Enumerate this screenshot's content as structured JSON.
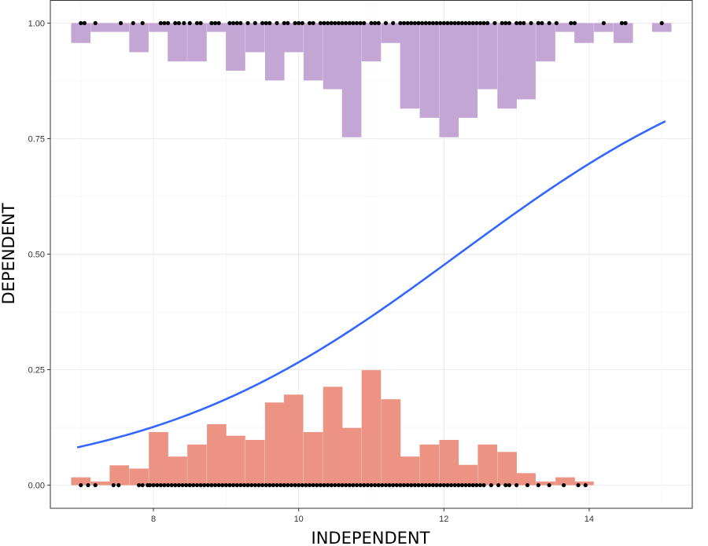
{
  "chart_data": {
    "type": "scatter",
    "title": "",
    "xlabel": "INDEPENDENT",
    "ylabel": "DEPENDENT",
    "xlim": [
      6.58,
      15.42
    ],
    "ylim": [
      -0.05,
      1.05
    ],
    "x_ticks": [
      8,
      10,
      12,
      14
    ],
    "x_tick_labels": [
      "8",
      "10",
      "12",
      "14"
    ],
    "y_ticks": [
      0,
      0.25,
      0.5,
      0.75,
      1
    ],
    "y_tick_labels": [
      "0.00",
      "0.25",
      "0.50",
      "0.75",
      "1.00"
    ],
    "grid": true,
    "legend": "none",
    "colors": {
      "curve": "#3366ff",
      "hist_y0": "#ec9384",
      "hist_y1": "#c4a6d4",
      "points": "#000000",
      "grid": "#ebebeb",
      "panel_border": "#333333"
    },
    "histogram_bin_width": 0.267,
    "hist_y0": {
      "baseline": 0,
      "bin_centers": [
        7.0,
        7.27,
        7.53,
        7.8,
        8.07,
        8.33,
        8.6,
        8.87,
        9.13,
        9.4,
        9.67,
        9.93,
        10.2,
        10.47,
        10.73,
        11.0,
        11.27,
        11.53,
        11.8,
        12.07,
        12.33,
        12.6,
        12.87,
        13.13,
        13.4,
        13.67,
        13.93
      ],
      "heights": [
        0.017,
        0.008,
        0.043,
        0.036,
        0.115,
        0.062,
        0.088,
        0.132,
        0.107,
        0.098,
        0.179,
        0.196,
        0.115,
        0.213,
        0.124,
        0.249,
        0.186,
        0.062,
        0.088,
        0.098,
        0.044,
        0.088,
        0.072,
        0.026,
        0.008,
        0.017,
        0.008
      ]
    },
    "hist_y1": {
      "baseline": 1,
      "bin_centers": [
        7.0,
        7.27,
        7.53,
        7.8,
        8.07,
        8.33,
        8.6,
        8.87,
        9.13,
        9.4,
        9.67,
        9.93,
        10.2,
        10.47,
        10.73,
        11.0,
        11.27,
        11.53,
        11.8,
        12.07,
        12.33,
        12.6,
        12.87,
        13.13,
        13.4,
        13.67,
        13.93,
        14.2,
        14.47,
        14.73,
        15.0
      ],
      "depths": [
        0.043,
        0.019,
        0.019,
        0.063,
        0.019,
        0.083,
        0.083,
        0.019,
        0.103,
        0.063,
        0.124,
        0.063,
        0.124,
        0.143,
        0.247,
        0.083,
        0.043,
        0.185,
        0.205,
        0.247,
        0.205,
        0.143,
        0.185,
        0.165,
        0.083,
        0.019,
        0.043,
        0.019,
        0.043,
        0.0,
        0.019
      ]
    },
    "points_y0_x": [
      7.0,
      7.1,
      7.2,
      7.45,
      7.52,
      7.8,
      7.85,
      7.92,
      7.95,
      8.0,
      8.05,
      8.1,
      8.15,
      8.2,
      8.25,
      8.3,
      8.35,
      8.4,
      8.45,
      8.5,
      8.55,
      8.6,
      8.65,
      8.7,
      8.75,
      8.8,
      8.85,
      8.9,
      8.95,
      9.0,
      9.05,
      9.1,
      9.15,
      9.2,
      9.25,
      9.3,
      9.35,
      9.4,
      9.45,
      9.5,
      9.55,
      9.6,
      9.65,
      9.7,
      9.75,
      9.8,
      9.85,
      9.9,
      9.95,
      10.0,
      10.05,
      10.1,
      10.15,
      10.2,
      10.25,
      10.3,
      10.35,
      10.4,
      10.45,
      10.5,
      10.55,
      10.6,
      10.65,
      10.7,
      10.75,
      10.8,
      10.85,
      10.9,
      10.95,
      11.0,
      11.05,
      11.1,
      11.15,
      11.2,
      11.25,
      11.3,
      11.35,
      11.4,
      11.45,
      11.5,
      11.55,
      11.6,
      11.65,
      11.7,
      11.75,
      11.8,
      11.85,
      11.9,
      11.95,
      12.0,
      12.05,
      12.1,
      12.15,
      12.2,
      12.25,
      12.3,
      12.35,
      12.4,
      12.45,
      12.5,
      12.55,
      12.65,
      12.75,
      12.85,
      12.9,
      13.0,
      13.15,
      13.3,
      13.45,
      13.65,
      13.85,
      13.95
    ],
    "points_y1_x": [
      7.0,
      7.05,
      7.2,
      7.55,
      7.72,
      7.85,
      8.1,
      8.15,
      8.2,
      8.3,
      8.35,
      8.42,
      8.5,
      8.6,
      8.65,
      8.8,
      8.85,
      8.9,
      9.05,
      9.1,
      9.15,
      9.2,
      9.3,
      9.4,
      9.5,
      9.55,
      9.6,
      9.7,
      9.8,
      9.85,
      9.95,
      10.0,
      10.05,
      10.15,
      10.2,
      10.3,
      10.35,
      10.4,
      10.45,
      10.5,
      10.55,
      10.6,
      10.65,
      10.7,
      10.75,
      10.8,
      10.85,
      10.9,
      11.0,
      11.05,
      11.1,
      11.2,
      11.3,
      11.4,
      11.45,
      11.5,
      11.55,
      11.6,
      11.65,
      11.7,
      11.75,
      11.8,
      11.85,
      11.9,
      11.95,
      12.0,
      12.05,
      12.1,
      12.15,
      12.2,
      12.25,
      12.3,
      12.35,
      12.4,
      12.45,
      12.5,
      12.55,
      12.6,
      12.7,
      12.8,
      12.85,
      12.9,
      13.0,
      13.05,
      13.1,
      13.2,
      13.3,
      13.35,
      13.45,
      13.55,
      13.75,
      13.8,
      14.2,
      14.45,
      14.5,
      15.0
    ],
    "logistic_curve": {
      "x_range": [
        6.95,
        15.05
      ],
      "x": [
        6.95,
        8.0,
        9.0,
        10.0,
        11.0,
        12.0,
        13.0,
        14.0,
        15.05
      ],
      "y": [
        0.082,
        0.128,
        0.186,
        0.261,
        0.361,
        0.482,
        0.594,
        0.692,
        0.789
      ]
    }
  }
}
